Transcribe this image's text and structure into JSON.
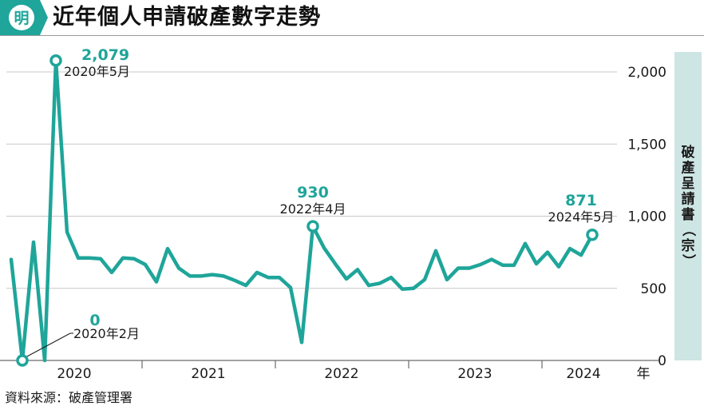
{
  "header": {
    "logo_char": "明",
    "title": "近年個人申請破產數字走勢"
  },
  "colors": {
    "accent": "#1fa59a",
    "band": "#cde5e3",
    "grid": "#c8c8c8",
    "axis": "#6b6b6b"
  },
  "chart_data": {
    "type": "line",
    "title": "",
    "ylabel": "破產呈請書（宗）",
    "xlabel": "年",
    "ylim": [
      0,
      2000
    ],
    "y_ticks": [
      "0",
      "500",
      "1,000",
      "1,500",
      "2,000"
    ],
    "x_labels": [
      "2020",
      "2021",
      "2022",
      "2023",
      "2024"
    ],
    "series": [
      {
        "values": [
          700,
          0,
          820,
          0,
          2079,
          890,
          710,
          710,
          705,
          610,
          710,
          705,
          665,
          545,
          775,
          640,
          585,
          585,
          595,
          585,
          555,
          520,
          610,
          575,
          575,
          505,
          125,
          930,
          780,
          670,
          565,
          630,
          520,
          535,
          575,
          495,
          500,
          560,
          760,
          560,
          640,
          640,
          665,
          700,
          660,
          660,
          810,
          670,
          750,
          650,
          775,
          730,
          871
        ]
      }
    ],
    "annotations": [
      {
        "value_label": "2,079",
        "date_label": "2020年5月"
      },
      {
        "value_label": "0",
        "date_label": "2020年2月"
      },
      {
        "value_label": "930",
        "date_label": "2022年4月"
      },
      {
        "value_label": "871",
        "date_label": "2024年5月"
      }
    ]
  },
  "footer": {
    "source": "資料來源：破產管理署"
  }
}
